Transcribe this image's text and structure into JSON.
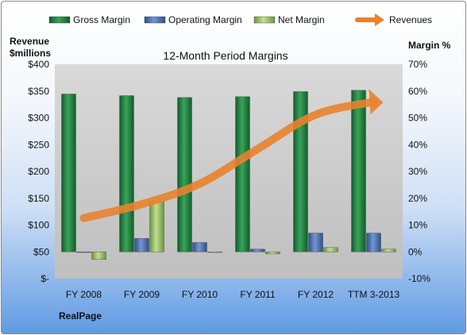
{
  "chart_data": {
    "type": "bar",
    "title": "12-Month Period Margins",
    "categories": [
      "FY 2008",
      "FY 2009",
      "FY 2010",
      "FY 2011",
      "FY 2012",
      "TTM 3-2013"
    ],
    "left_axis": {
      "label_line1": "Revenue",
      "label_line2": "$millions",
      "range": [
        0,
        400
      ],
      "ticks": [
        {
          "value": 0,
          "label": "$-"
        },
        {
          "value": 50,
          "label": "$50"
        },
        {
          "value": 100,
          "label": "$100"
        },
        {
          "value": 150,
          "label": "$150"
        },
        {
          "value": 200,
          "label": "$200"
        },
        {
          "value": 250,
          "label": "$250"
        },
        {
          "value": 300,
          "label": "$300"
        },
        {
          "value": 350,
          "label": "$350"
        },
        {
          "value": 400,
          "label": "$400"
        }
      ]
    },
    "right_axis": {
      "label": "Margin %",
      "range": [
        -10,
        70
      ],
      "ticks": [
        {
          "value": -10,
          "label": "-10%"
        },
        {
          "value": 0,
          "label": "0%"
        },
        {
          "value": 10,
          "label": "10%"
        },
        {
          "value": 20,
          "label": "20%"
        },
        {
          "value": 30,
          "label": "30%"
        },
        {
          "value": 40,
          "label": "40%"
        },
        {
          "value": 50,
          "label": "50%"
        },
        {
          "value": 60,
          "label": "60%"
        },
        {
          "value": 70,
          "label": "70%"
        }
      ]
    },
    "series": [
      {
        "name": "Gross Margin",
        "kind": "bar",
        "axis": "right",
        "color": "#1e7f3e",
        "values": [
          58.9,
          58.3,
          57.6,
          57.9,
          59.8,
          60.3
        ]
      },
      {
        "name": "Operating Margin",
        "kind": "bar",
        "axis": "right",
        "color": "#4a6fae",
        "values": [
          -0.2,
          5.0,
          3.5,
          1.0,
          7.0,
          7.0
        ]
      },
      {
        "name": "Net Margin",
        "kind": "bar",
        "axis": "right",
        "color": "#9ac266",
        "values": [
          -2.8,
          18.8,
          -0.2,
          -0.8,
          1.6,
          1.0
        ]
      },
      {
        "name": "Revenues",
        "kind": "line",
        "axis": "left",
        "color": "#e8822d",
        "values": [
          113,
          139,
          177,
          242,
          306,
          330
        ]
      }
    ],
    "grid": false,
    "legend_position": "top"
  },
  "footer": {
    "company": "RealPage"
  }
}
